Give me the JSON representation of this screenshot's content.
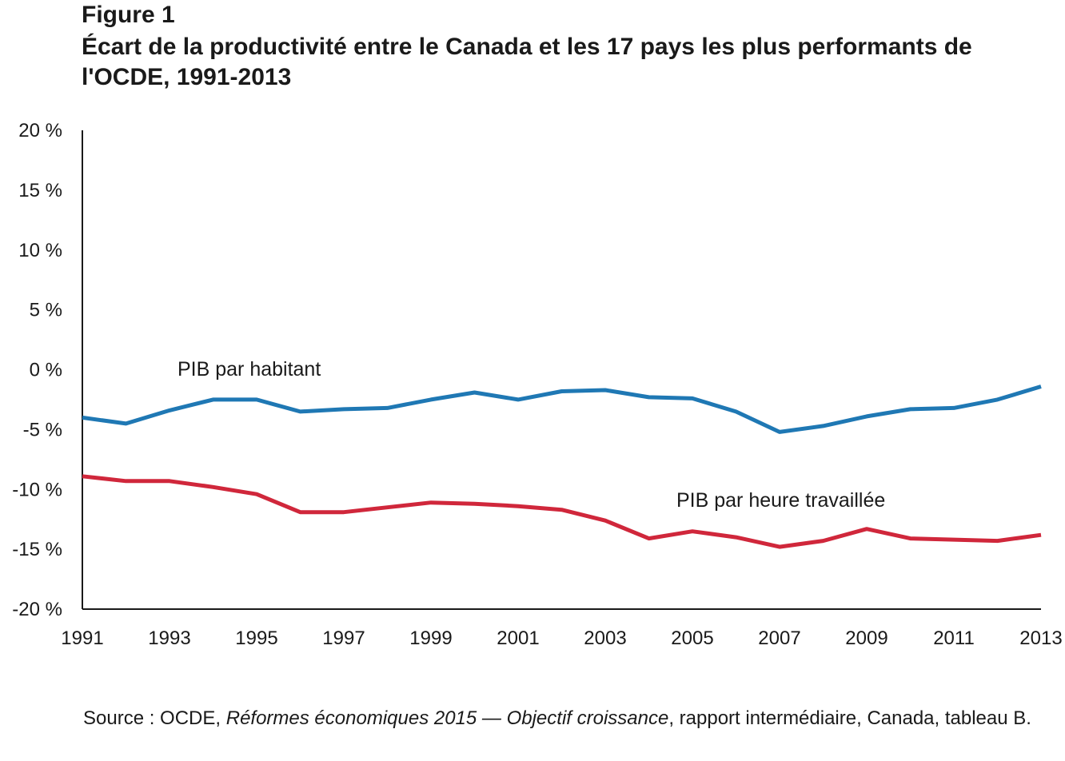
{
  "figure_label": "Figure 1",
  "source": {
    "prefix": "Source : OCDE, ",
    "italic": "Réformes économiques 2015 — Objectif croissance",
    "suffix": ", rapport intermédiaire, Canada, tableau B."
  },
  "chart_data": {
    "type": "line",
    "title": "Écart de la productivité entre le Canada et les 17 pays les plus performants de l'OCDE, 1991-2013",
    "xlabel": "",
    "ylabel": "",
    "ylim": [
      -20,
      20
    ],
    "xlim": [
      1991,
      2013
    ],
    "y_ticks": [
      20,
      15,
      10,
      5,
      0,
      -5,
      -10,
      -15,
      -20
    ],
    "y_tick_labels": [
      "20 %",
      "15 %",
      "10 %",
      "5 %",
      "0 %",
      "-5 %",
      "-10 %",
      "-15 %",
      "-20 %"
    ],
    "x_tick_labels": [
      "1991",
      "1993",
      "1995",
      "1997",
      "1999",
      "2001",
      "2003",
      "2005",
      "2007",
      "2009",
      "2011",
      "2013"
    ],
    "grid": false,
    "legend": "none",
    "x": [
      1991,
      1992,
      1993,
      1994,
      1995,
      1996,
      1997,
      1998,
      1999,
      2000,
      2001,
      2002,
      2003,
      2004,
      2005,
      2006,
      2007,
      2008,
      2009,
      2010,
      2011,
      2012,
      2013
    ],
    "series": [
      {
        "name": "PIB par habitant",
        "color": "#1f78b4",
        "values": [
          -4.0,
          -4.5,
          -3.4,
          -2.5,
          -2.5,
          -3.5,
          -3.3,
          -3.2,
          -2.5,
          -1.9,
          -2.5,
          -1.8,
          -1.7,
          -2.3,
          -2.4,
          -3.5,
          -5.2,
          -4.7,
          -3.9,
          -3.3,
          -3.2,
          -2.5,
          -1.4
        ]
      },
      {
        "name": "PIB par heure travaillée",
        "color": "#d0273b",
        "values": [
          -8.9,
          -9.3,
          -9.3,
          -9.8,
          -10.4,
          -11.9,
          -11.9,
          -11.5,
          -11.1,
          -11.2,
          -11.4,
          -11.7,
          -12.6,
          -14.1,
          -13.5,
          -14.0,
          -14.8,
          -14.3,
          -13.3,
          -14.1,
          -14.2,
          -14.3,
          -13.8
        ]
      }
    ]
  }
}
